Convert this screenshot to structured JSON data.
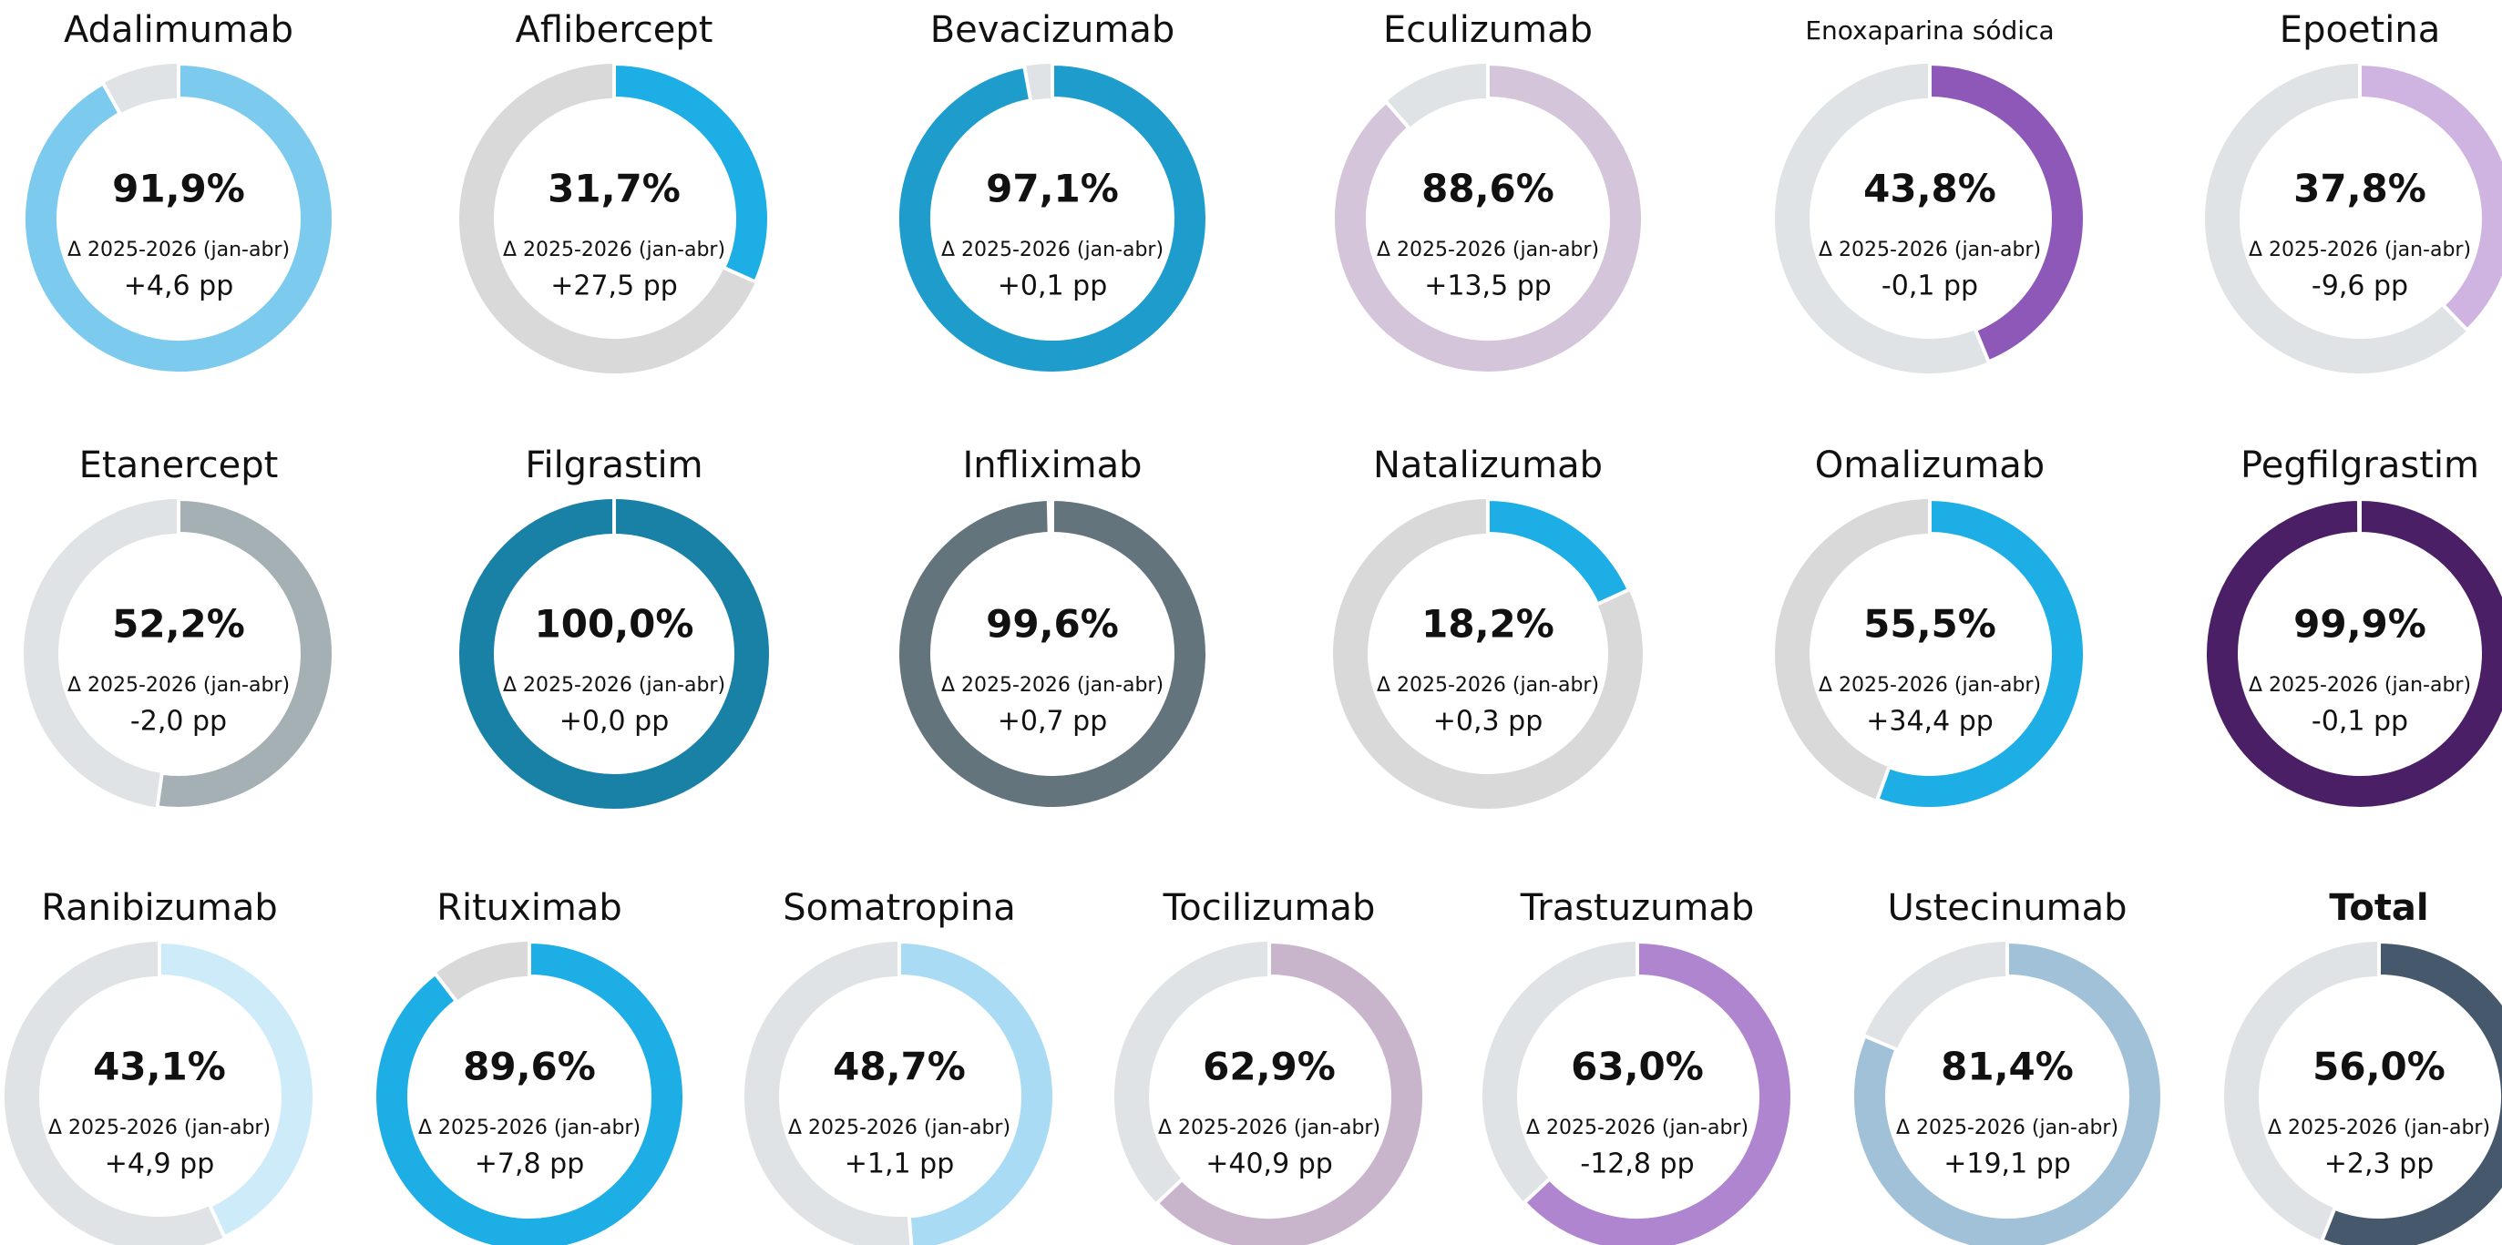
{
  "chart_data": [
    {
      "type": "donut",
      "title": "Adalimumab",
      "values": [
        91.9
      ],
      "value_labels": [
        "91,9%"
      ],
      "color": "#7ccbee",
      "track_color": "#dfe3e6",
      "annotation": "Δ 2025-2026 (jan-abr)",
      "delta": "+4,6 pp"
    },
    {
      "type": "donut",
      "title": "Aflibercept",
      "values": [
        31.7
      ],
      "value_labels": [
        "31,7%"
      ],
      "color": "#1eaee6",
      "track_color": "#d9d9d9",
      "annotation": "Δ 2025-2026 (jan-abr)",
      "delta": "+27,5 pp"
    },
    {
      "type": "donut",
      "title": "Bevacizumab",
      "values": [
        97.1
      ],
      "value_labels": [
        "97,1%"
      ],
      "color": "#1e9ccc",
      "track_color": "#dfe3e6",
      "annotation": "Δ 2025-2026 (jan-abr)",
      "delta": "+0,1 pp"
    },
    {
      "type": "donut",
      "title": "Eculizumab",
      "values": [
        88.6
      ],
      "value_labels": [
        "88,6%"
      ],
      "color": "#d5c5da",
      "track_color": "#dfe3e6",
      "annotation": "Δ 2025-2026 (jan-abr)",
      "delta": "+13,5 pp"
    },
    {
      "type": "donut",
      "title": "Enoxaparina sódica",
      "values": [
        43.8
      ],
      "value_labels": [
        "43,8%"
      ],
      "color": "#8e58b8",
      "track_color": "#dfe3e6",
      "annotation": "Δ 2025-2026 (jan-abr)",
      "delta": "-0,1 pp"
    },
    {
      "type": "donut",
      "title": "Epoetina",
      "values": [
        37.8
      ],
      "value_labels": [
        "37,8%"
      ],
      "color": "#cfb3e0",
      "track_color": "#dfe3e6",
      "annotation": "Δ 2025-2026 (jan-abr)",
      "delta": "-9,6 pp"
    },
    {
      "type": "donut",
      "title": "Etanercept",
      "values": [
        52.2
      ],
      "value_labels": [
        "52,2%"
      ],
      "color": "#a4b0b4",
      "track_color": "#dfe3e6",
      "annotation": "Δ 2025-2026 (jan-abr)",
      "delta": "-2,0 pp"
    },
    {
      "type": "donut",
      "title": "Filgrastim",
      "values": [
        100.0
      ],
      "value_labels": [
        "100,0%"
      ],
      "color": "#1a81a6",
      "track_color": "#dfe3e6",
      "annotation": "Δ 2025-2026 (jan-abr)",
      "delta": "+0,0 pp"
    },
    {
      "type": "donut",
      "title": "Infliximab",
      "values": [
        99.6
      ],
      "value_labels": [
        "99,6%"
      ],
      "color": "#64747c",
      "track_color": "#dfe3e6",
      "annotation": "Δ 2025-2026 (jan-abr)",
      "delta": "+0,7 pp"
    },
    {
      "type": "donut",
      "title": "Natalizumab",
      "values": [
        18.2
      ],
      "value_labels": [
        "18,2%"
      ],
      "color": "#1eaee6",
      "track_color": "#d9d9d9",
      "annotation": "Δ 2025-2026 (jan-abr)",
      "delta": "+0,3 pp"
    },
    {
      "type": "donut",
      "title": "Omalizumab",
      "values": [
        55.5
      ],
      "value_labels": [
        "55,5%"
      ],
      "color": "#1eaee6",
      "track_color": "#d9d9d9",
      "annotation": "Δ 2025-2026 (jan-abr)",
      "delta": "+34,4 pp"
    },
    {
      "type": "donut",
      "title": "Pegfilgrastim",
      "values": [
        99.9
      ],
      "value_labels": [
        "99,9%"
      ],
      "color": "#4a1f66",
      "track_color": "#dfe3e6",
      "annotation": "Δ 2025-2026 (jan-abr)",
      "delta": "-0,1 pp"
    },
    {
      "type": "donut",
      "title": "Ranibizumab",
      "values": [
        43.1
      ],
      "value_labels": [
        "43,1%"
      ],
      "color": "#cdebf8",
      "track_color": "#dfe3e6",
      "annotation": "Δ 2025-2026 (jan-abr)",
      "delta": "+4,9 pp"
    },
    {
      "type": "donut",
      "title": "Rituximab",
      "values": [
        89.6
      ],
      "value_labels": [
        "89,6%"
      ],
      "color": "#1eaee6",
      "track_color": "#d9d9d9",
      "annotation": "Δ 2025-2026 (jan-abr)",
      "delta": "+7,8 pp"
    },
    {
      "type": "donut",
      "title": "Somatropina",
      "values": [
        48.7
      ],
      "value_labels": [
        "48,7%"
      ],
      "color": "#a9dcf4",
      "track_color": "#dfe3e6",
      "annotation": "Δ 2025-2026 (jan-abr)",
      "delta": "+1,1 pp"
    },
    {
      "type": "donut",
      "title": "Tocilizumab",
      "values": [
        62.9
      ],
      "value_labels": [
        "62,9%"
      ],
      "color": "#c8b5cb",
      "track_color": "#dfe3e6",
      "annotation": "Δ 2025-2026 (jan-abr)",
      "delta": "+40,9 pp"
    },
    {
      "type": "donut",
      "title": "Trastuzumab",
      "values": [
        63.0
      ],
      "value_labels": [
        "63,0%"
      ],
      "color": "#b085d0",
      "track_color": "#dfe3e6",
      "annotation": "Δ 2025-2026 (jan-abr)",
      "delta": "-12,8 pp"
    },
    {
      "type": "donut",
      "title": "Ustecinumab",
      "values": [
        81.4
      ],
      "value_labels": [
        "81,4%"
      ],
      "color": "#a0c1d7",
      "track_color": "#dfe3e6",
      "annotation": "Δ 2025-2026 (jan-abr)",
      "delta": "+19,1 pp"
    },
    {
      "type": "donut",
      "title": "Total",
      "values": [
        56.0
      ],
      "value_labels": [
        "56,0%"
      ],
      "color": "#46586c",
      "track_color": "#dfe3e6",
      "annotation": "Δ 2025-2026 (jan-abr)",
      "delta": "+2,3 pp",
      "title_bold": true
    }
  ]
}
